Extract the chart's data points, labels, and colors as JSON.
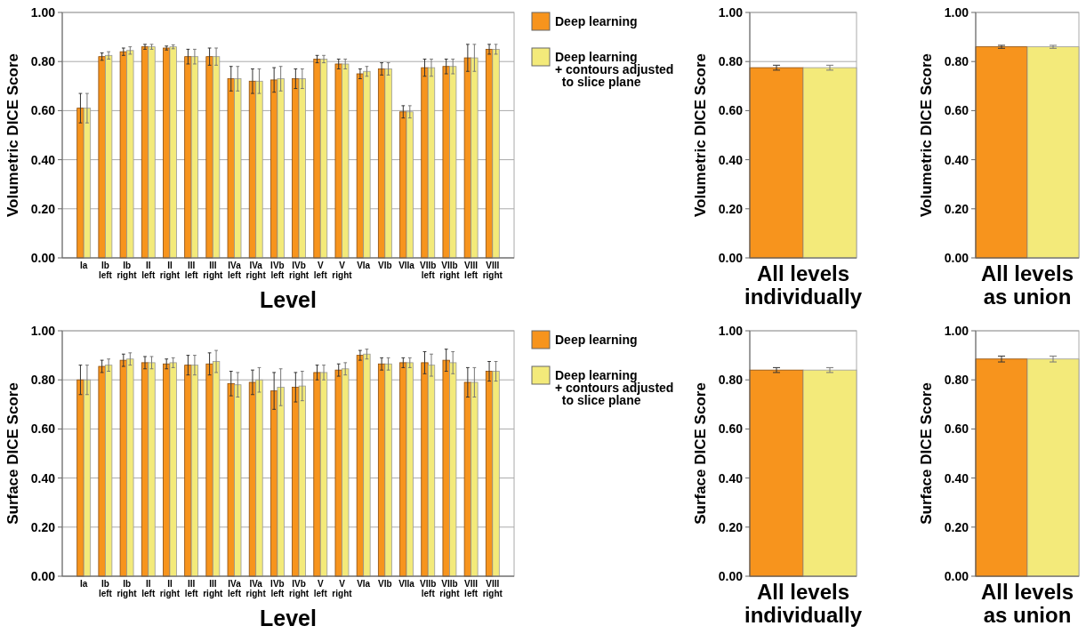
{
  "chart_data": [
    {
      "type": "bar",
      "xlabel": "Level",
      "ylabel": "Volumetric DICE Score",
      "categories": [
        "Ia",
        "Ib left",
        "Ib right",
        "II left",
        "II right",
        "III left",
        "III right",
        "IVa left",
        "IVa right",
        "IVb left",
        "IVb right",
        "V left",
        "V right",
        "VIa",
        "VIb",
        "VIIa",
        "VIIb left",
        "VIIb right",
        "VIII left",
        "VIII right"
      ],
      "series": [
        {
          "name": "Deep learning",
          "color": "#f7941d",
          "values": [
            0.61,
            0.82,
            0.84,
            0.86,
            0.855,
            0.82,
            0.82,
            0.73,
            0.72,
            0.725,
            0.73,
            0.81,
            0.79,
            0.75,
            0.77,
            0.595,
            0.775,
            0.78,
            0.815,
            0.85
          ],
          "errors": [
            0.06,
            0.015,
            0.015,
            0.01,
            0.008,
            0.03,
            0.035,
            0.05,
            0.05,
            0.05,
            0.04,
            0.015,
            0.02,
            0.02,
            0.025,
            0.025,
            0.035,
            0.03,
            0.055,
            0.02
          ]
        },
        {
          "name": "Deep learning\n+ contours adjusted\n  to slice plane",
          "color": "#f3ea7a",
          "values": [
            0.61,
            0.825,
            0.845,
            0.86,
            0.86,
            0.82,
            0.82,
            0.73,
            0.72,
            0.73,
            0.73,
            0.81,
            0.79,
            0.76,
            0.77,
            0.595,
            0.775,
            0.78,
            0.815,
            0.85
          ],
          "errors": [
            0.06,
            0.015,
            0.015,
            0.01,
            0.008,
            0.03,
            0.035,
            0.05,
            0.05,
            0.05,
            0.04,
            0.015,
            0.02,
            0.02,
            0.025,
            0.025,
            0.035,
            0.03,
            0.055,
            0.02
          ]
        }
      ],
      "ylim": [
        0,
        1
      ],
      "yticks": [
        {
          "value": 0,
          "label": "0.00"
        },
        {
          "value": 0.2,
          "label": "0.20"
        },
        {
          "value": 0.4,
          "label": "0.40"
        },
        {
          "value": 0.6,
          "label": "0.60"
        },
        {
          "value": 0.8,
          "label": "0.80"
        },
        {
          "value": 1,
          "label": "1.00"
        }
      ],
      "grid": "y",
      "legend": "right"
    },
    {
      "type": "bar",
      "ylabel": "Volumetric DICE Score",
      "categories": [
        "All levels individually"
      ],
      "series": [
        {
          "color": "#f7941d",
          "values": [
            0.775
          ],
          "errors": [
            0.01
          ]
        },
        {
          "color": "#f3ea7a",
          "values": [
            0.775
          ],
          "errors": [
            0.01
          ]
        }
      ],
      "ylim": [
        0,
        1
      ],
      "yticks": [
        {
          "value": 0,
          "label": "0.00"
        },
        {
          "value": 0.2,
          "label": "0.20"
        },
        {
          "value": 0.4,
          "label": "0.40"
        },
        {
          "value": 0.6,
          "label": "0.60"
        },
        {
          "value": 0.8,
          "label": "0.80"
        },
        {
          "value": 1,
          "label": "1.00"
        }
      ],
      "grid": "y"
    },
    {
      "type": "bar",
      "ylabel": "Volumetric DICE Score",
      "categories": [
        "All levels as union"
      ],
      "series": [
        {
          "color": "#f7941d",
          "values": [
            0.86
          ],
          "errors": [
            0.006
          ]
        },
        {
          "color": "#f3ea7a",
          "values": [
            0.86
          ],
          "errors": [
            0.006
          ]
        }
      ],
      "ylim": [
        0,
        1
      ],
      "yticks": [
        {
          "value": 0,
          "label": "0.00"
        },
        {
          "value": 0.2,
          "label": "0.20"
        },
        {
          "value": 0.4,
          "label": "0.40"
        },
        {
          "value": 0.6,
          "label": "0.60"
        },
        {
          "value": 0.8,
          "label": "0.80"
        },
        {
          "value": 1,
          "label": "1.00"
        }
      ],
      "grid": "y"
    },
    {
      "type": "bar",
      "xlabel": "Level",
      "ylabel": "Surface DICE Score",
      "categories": [
        "Ia",
        "Ib left",
        "Ib right",
        "II left",
        "II right",
        "III left",
        "III right",
        "IVa left",
        "IVa right",
        "IVb left",
        "IVb right",
        "V left",
        "V right",
        "VIa",
        "VIb",
        "VIIa",
        "VIIb left",
        "VIIb right",
        "VIII left",
        "VIII right"
      ],
      "series": [
        {
          "name": "Deep learning",
          "color": "#f7941d",
          "values": [
            0.8,
            0.855,
            0.88,
            0.87,
            0.865,
            0.86,
            0.865,
            0.785,
            0.79,
            0.755,
            0.77,
            0.83,
            0.84,
            0.9,
            0.865,
            0.87,
            0.87,
            0.88,
            0.79,
            0.835
          ],
          "errors": [
            0.06,
            0.025,
            0.025,
            0.025,
            0.02,
            0.04,
            0.045,
            0.05,
            0.05,
            0.075,
            0.06,
            0.03,
            0.025,
            0.02,
            0.025,
            0.02,
            0.045,
            0.045,
            0.06,
            0.04
          ]
        },
        {
          "name": "Deep learning\n+ contours adjusted\n  to slice plane",
          "color": "#f3ea7a",
          "values": [
            0.8,
            0.86,
            0.885,
            0.87,
            0.87,
            0.86,
            0.875,
            0.78,
            0.8,
            0.77,
            0.775,
            0.83,
            0.845,
            0.905,
            0.865,
            0.87,
            0.86,
            0.87,
            0.79,
            0.835
          ],
          "errors": [
            0.06,
            0.025,
            0.025,
            0.025,
            0.02,
            0.04,
            0.045,
            0.05,
            0.05,
            0.075,
            0.06,
            0.03,
            0.025,
            0.02,
            0.025,
            0.02,
            0.045,
            0.045,
            0.06,
            0.04
          ]
        }
      ],
      "ylim": [
        0,
        1
      ],
      "yticks": [
        {
          "value": 0,
          "label": "0.00"
        },
        {
          "value": 0.2,
          "label": "0.20"
        },
        {
          "value": 0.4,
          "label": "0.40"
        },
        {
          "value": 0.6,
          "label": "0.60"
        },
        {
          "value": 0.8,
          "label": "0.80"
        },
        {
          "value": 1,
          "label": "1.00"
        }
      ],
      "grid": "y",
      "legend": "right"
    },
    {
      "type": "bar",
      "ylabel": "Surface DICE Score",
      "categories": [
        "All levels individually"
      ],
      "series": [
        {
          "color": "#f7941d",
          "values": [
            0.84
          ],
          "errors": [
            0.01
          ]
        },
        {
          "color": "#f3ea7a",
          "values": [
            0.84
          ],
          "errors": [
            0.01
          ]
        }
      ],
      "ylim": [
        0,
        1
      ],
      "yticks": [
        {
          "value": 0,
          "label": "0.00"
        },
        {
          "value": 0.2,
          "label": "0.20"
        },
        {
          "value": 0.4,
          "label": "0.40"
        },
        {
          "value": 0.6,
          "label": "0.60"
        },
        {
          "value": 0.8,
          "label": "0.80"
        },
        {
          "value": 1,
          "label": "1.00"
        }
      ],
      "grid": "y"
    },
    {
      "type": "bar",
      "ylabel": "Surface DICE Score",
      "categories": [
        "All levels as union"
      ],
      "series": [
        {
          "color": "#f7941d",
          "values": [
            0.885
          ],
          "errors": [
            0.012
          ]
        },
        {
          "color": "#f3ea7a",
          "values": [
            0.885
          ],
          "errors": [
            0.012
          ]
        }
      ],
      "ylim": [
        0,
        1
      ],
      "yticks": [
        {
          "value": 0,
          "label": "0.00"
        },
        {
          "value": 0.2,
          "label": "0.20"
        },
        {
          "value": 0.4,
          "label": "0.40"
        },
        {
          "value": 0.6,
          "label": "0.60"
        },
        {
          "value": 0.8,
          "label": "0.80"
        },
        {
          "value": 1,
          "label": "1.00"
        }
      ],
      "grid": "y"
    }
  ]
}
